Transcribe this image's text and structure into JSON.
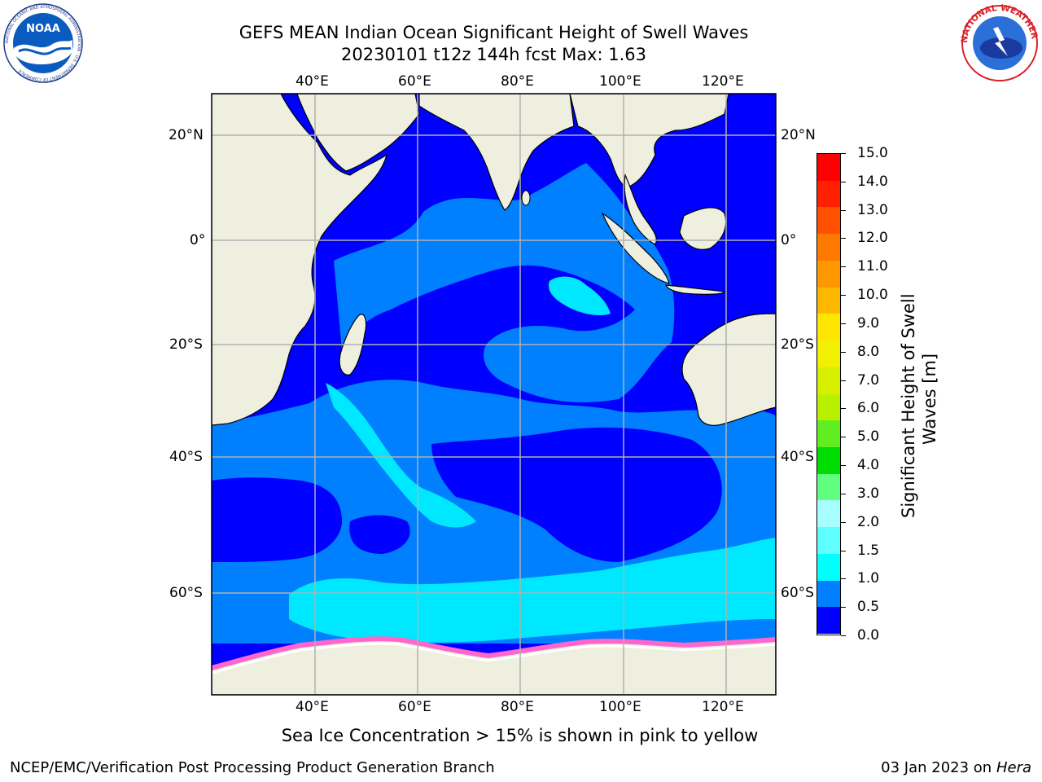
{
  "title_line1": "GEFS MEAN Indian Ocean Significant Height of Swell Waves",
  "title_line2": "20230101 t12z 144h fcst   Max: 1.63",
  "logos": {
    "left": "NOAA",
    "left_ring": "NATIONAL OCEANIC AND ATMOSPHERIC ADMINISTRATION · U.S. DEPARTMENT OF COMMERCE",
    "right_ring": "NATIONAL WEATHER SERVICE"
  },
  "map": {
    "lon_labels_top": [
      "40°E",
      "60°E",
      "80°E",
      "100°E",
      "120°E"
    ],
    "lon_labels_bottom": [
      "40°E",
      "60°E",
      "80°E",
      "100°E",
      "120°E"
    ],
    "lat_labels_left": [
      "20°N",
      "0°",
      "20°S",
      "40°S",
      "60°S"
    ],
    "lat_labels_right": [
      "20°N",
      "0°",
      "20°S",
      "40°S",
      "60°S"
    ],
    "lon_range": [
      20,
      130
    ],
    "lat_range": [
      -71,
      27
    ],
    "grid": true,
    "colors": {
      "land": "#efefdf",
      "ocean_0_0.5": "#0000ff",
      "ocean_0.5_1.0": "#0080ff",
      "ocean_1.0_1.5": "#00e8ff",
      "ocean_1.5_2.0": "#60f4ff",
      "sea_ice": "#ff66cc"
    }
  },
  "colorbar": {
    "label_line1": "Significant Height of Swell",
    "label_line2": "Waves [m]",
    "ticks": [
      "15.0",
      "14.0",
      "13.0",
      "12.0",
      "11.0",
      "10.0",
      "9.0",
      "8.0",
      "7.0",
      "6.0",
      "5.0",
      "4.0",
      "3.0",
      "2.0",
      "1.5",
      "1.0",
      "0.5",
      "0.0"
    ],
    "colors": [
      "#ff0000",
      "#ff2000",
      "#ff5000",
      "#ff7800",
      "#ff9800",
      "#ffb800",
      "#ffe600",
      "#f0f000",
      "#d8f000",
      "#b8f000",
      "#60ee20",
      "#00dd00",
      "#60ff80",
      "#a8ffff",
      "#60ffff",
      "#00ffff",
      "#0080ff",
      "#0000ff"
    ]
  },
  "annotation": "Sea Ice Concentration > 15% is shown in pink to yellow",
  "footer_left": "NCEP/EMC/Verification Post Processing Product Generation Branch",
  "footer_right_date": "03 Jan 2023 on ",
  "footer_right_host": "Hera"
}
